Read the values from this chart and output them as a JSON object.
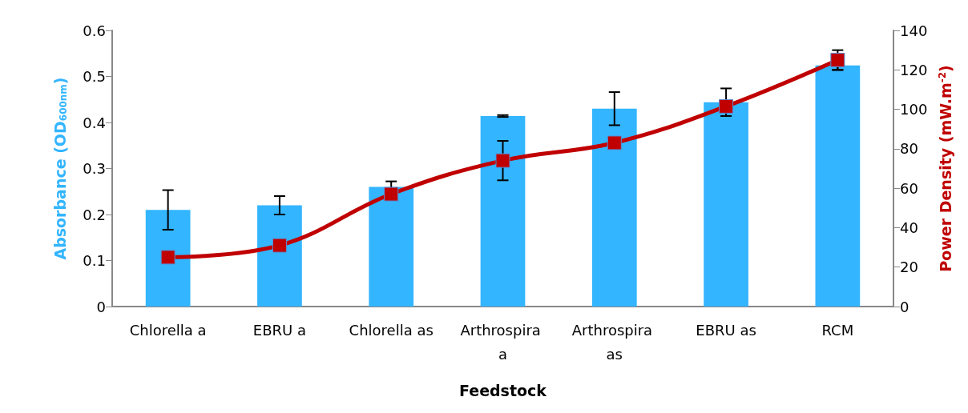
{
  "chart_data": {
    "type": "bar",
    "categories": [
      "Chlorella a",
      "EBRU a",
      "Chlorella as",
      "Arthrospira a",
      "Arthrospira as",
      "EBRU as",
      "RCM"
    ],
    "xlabel": "Feedstock",
    "ylabel": "Absorbance (OD$_{600nm}$)",
    "y2label": "Power Density (mW.m$^{-2}$)",
    "series": [
      {
        "color": "#33b5ff",
        "values": [
          0.21,
          0.22,
          0.26,
          0.414,
          0.43,
          0.444,
          0.524
        ],
        "errors": [
          0.043,
          0.02,
          0.012,
          0.002,
          0.036,
          0.03,
          0.01
        ]
      },
      {
        "type": "line",
        "axis": "y2",
        "color": "#c00000",
        "values": [
          25,
          31,
          57,
          74,
          83,
          101.5,
          125
        ],
        "errors": [
          null,
          null,
          null,
          10,
          null,
          null,
          5
        ]
      }
    ],
    "ylim": [
      0,
      0.6
    ],
    "yticks": [
      0,
      0.1,
      0.2,
      0.3,
      0.4,
      0.5,
      0.6
    ],
    "y2lim": [
      0,
      140
    ],
    "y2ticks": [
      0,
      20,
      40,
      60,
      80,
      100,
      120,
      140
    ],
    "grid": false,
    "marker": "square",
    "line_style": "solid"
  }
}
